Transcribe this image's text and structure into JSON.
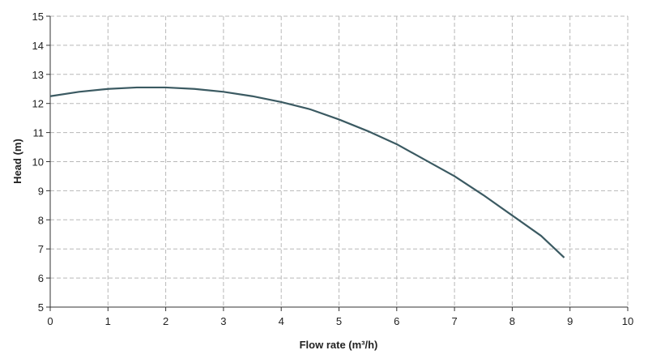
{
  "chart_data": {
    "type": "line",
    "x_label": "Flow rate (m³/h)",
    "y_label": "Head (m)",
    "x": [
      0,
      0.5,
      1,
      1.5,
      2,
      2.5,
      3,
      3.5,
      4,
      4.5,
      5,
      5.5,
      6,
      6.5,
      7,
      7.5,
      8,
      8.5,
      8.9
    ],
    "series": [
      {
        "color": "#3b5a62",
        "values": [
          12.25,
          12.4,
          12.5,
          12.55,
          12.55,
          12.5,
          12.4,
          12.25,
          12.05,
          11.8,
          11.45,
          11.05,
          10.6,
          10.05,
          9.5,
          8.85,
          8.15,
          7.45,
          6.7
        ]
      }
    ],
    "xlim": [
      0,
      10
    ],
    "xticks": [
      0,
      1,
      2,
      3,
      4,
      5,
      6,
      7,
      8,
      9,
      10
    ],
    "ylim": [
      5,
      15
    ],
    "yticks": [
      5,
      6,
      7,
      8,
      9,
      10,
      11,
      12,
      13,
      14,
      15
    ],
    "grid": true
  }
}
